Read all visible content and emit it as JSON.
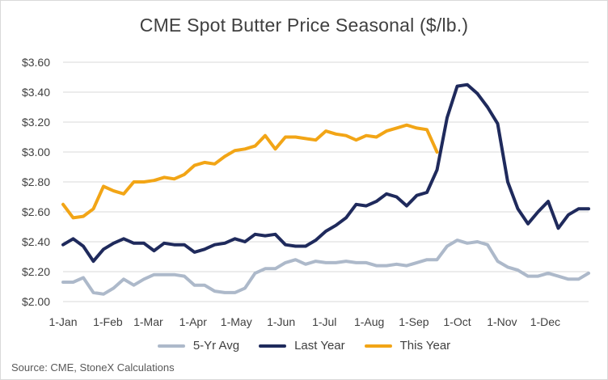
{
  "chart_data": {
    "type": "line",
    "title": "CME Spot Butter Price Seasonal ($/lb.)",
    "source": "Source: CME, StoneX Calculations",
    "xlabel": "",
    "ylabel": "",
    "ylim": [
      2.0,
      3.6
    ],
    "yticks": [
      "$2.00",
      "$2.20",
      "$2.40",
      "$2.60",
      "$2.80",
      "$3.00",
      "$3.20",
      "$3.40",
      "$3.60"
    ],
    "ytick_values": [
      2.0,
      2.2,
      2.4,
      2.6,
      2.8,
      3.0,
      3.2,
      3.4,
      3.6
    ],
    "xlim": [
      1,
      53
    ],
    "x_unit": "week of year",
    "xticks": [
      {
        "label": "1-Jan",
        "week": 1
      },
      {
        "label": "1-Feb",
        "week": 5.43
      },
      {
        "label": "1-Mar",
        "week": 9.43
      },
      {
        "label": "1-Apr",
        "week": 13.86
      },
      {
        "label": "1-May",
        "week": 18.14
      },
      {
        "label": "1-Jun",
        "week": 22.57
      },
      {
        "label": "1-Jul",
        "week": 26.86
      },
      {
        "label": "1-Aug",
        "week": 31.29
      },
      {
        "label": "1-Sep",
        "week": 35.71
      },
      {
        "label": "1-Oct",
        "week": 40
      },
      {
        "label": "1-Nov",
        "week": 44.43
      },
      {
        "label": "1-Dec",
        "week": 48.71
      }
    ],
    "grid": "horizontal",
    "legend_position": "bottom",
    "series": [
      {
        "name": "5-Yr Avg",
        "color": "#adb9ca",
        "x": [
          1,
          2,
          3,
          4,
          5,
          6,
          7,
          8,
          9,
          10,
          11,
          12,
          13,
          14,
          15,
          16,
          17,
          18,
          19,
          20,
          21,
          22,
          23,
          24,
          25,
          26,
          27,
          28,
          29,
          30,
          31,
          32,
          33,
          34,
          35,
          36,
          37,
          38,
          39,
          40,
          41,
          42,
          43,
          44,
          45,
          46,
          47,
          48,
          49,
          50,
          51,
          52,
          53
        ],
        "values": [
          2.13,
          2.13,
          2.16,
          2.06,
          2.05,
          2.09,
          2.15,
          2.11,
          2.15,
          2.18,
          2.18,
          2.18,
          2.17,
          2.11,
          2.11,
          2.07,
          2.06,
          2.06,
          2.09,
          2.19,
          2.22,
          2.22,
          2.26,
          2.28,
          2.25,
          2.27,
          2.26,
          2.26,
          2.27,
          2.26,
          2.26,
          2.24,
          2.24,
          2.25,
          2.24,
          2.26,
          2.28,
          2.28,
          2.37,
          2.41,
          2.39,
          2.4,
          2.38,
          2.27,
          2.23,
          2.21,
          2.17,
          2.17,
          2.19,
          2.17,
          2.15,
          2.15,
          2.19
        ]
      },
      {
        "name": "Last Year",
        "color": "#1f2a5c",
        "x": [
          1,
          2,
          3,
          4,
          5,
          6,
          7,
          8,
          9,
          10,
          11,
          12,
          13,
          14,
          15,
          16,
          17,
          18,
          19,
          20,
          21,
          22,
          23,
          24,
          25,
          26,
          27,
          28,
          29,
          30,
          31,
          32,
          33,
          34,
          35,
          36,
          37,
          38,
          39,
          40,
          41,
          42,
          43,
          44,
          45,
          46,
          47,
          48,
          49,
          50,
          51,
          52,
          53
        ],
        "values": [
          2.38,
          2.42,
          2.37,
          2.27,
          2.35,
          2.39,
          2.42,
          2.39,
          2.39,
          2.34,
          2.39,
          2.38,
          2.38,
          2.33,
          2.35,
          2.38,
          2.39,
          2.42,
          2.4,
          2.45,
          2.44,
          2.45,
          2.38,
          2.37,
          2.37,
          2.41,
          2.47,
          2.51,
          2.56,
          2.65,
          2.64,
          2.67,
          2.72,
          2.7,
          2.64,
          2.71,
          2.73,
          2.88,
          3.23,
          3.44,
          3.45,
          3.39,
          3.3,
          3.19,
          2.8,
          2.62,
          2.52,
          2.6,
          2.67,
          2.49,
          2.58,
          2.62,
          2.62
        ]
      },
      {
        "name": "This Year",
        "color": "#f2a516",
        "x": [
          1,
          2,
          3,
          4,
          5,
          6,
          7,
          8,
          9,
          10,
          11,
          12,
          13,
          14,
          15,
          16,
          17,
          18,
          19,
          20,
          21,
          22,
          23,
          24,
          25,
          26,
          27,
          28,
          29,
          30,
          31,
          32,
          33,
          34,
          35,
          36,
          37,
          38
        ],
        "values": [
          2.65,
          2.56,
          2.57,
          2.62,
          2.77,
          2.74,
          2.72,
          2.8,
          2.8,
          2.81,
          2.83,
          2.82,
          2.85,
          2.91,
          2.93,
          2.92,
          2.97,
          3.01,
          3.02,
          3.04,
          3.11,
          3.02,
          3.1,
          3.1,
          3.09,
          3.08,
          3.14,
          3.12,
          3.11,
          3.08,
          3.11,
          3.1,
          3.14,
          3.16,
          3.18,
          3.16,
          3.15,
          3.0
        ]
      }
    ]
  }
}
